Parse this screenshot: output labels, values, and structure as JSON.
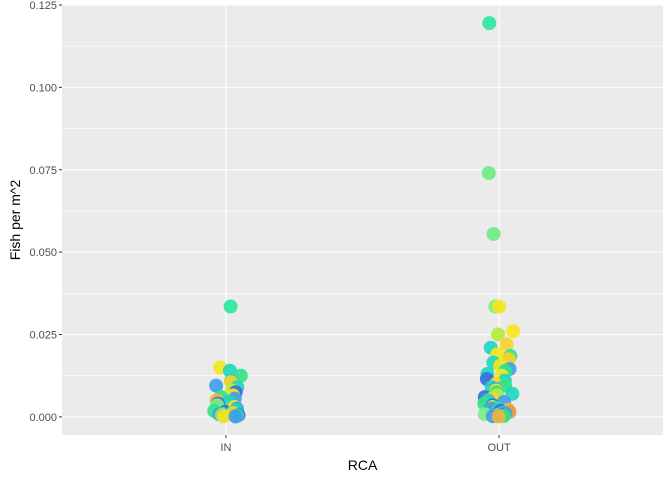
{
  "chart_data": {
    "type": "scatter",
    "title": "",
    "xlabel": "RCA",
    "ylabel": "Fish per m^2",
    "categories": [
      "IN",
      "OUT"
    ],
    "ylim": [
      -0.0055,
      0.125
    ],
    "yticks": [
      0.0,
      0.025,
      0.05,
      0.075,
      0.1,
      0.125
    ],
    "ytick_labels": [
      "0.000",
      "0.025",
      "0.050",
      "0.075",
      "0.100",
      "0.125"
    ],
    "grid": true,
    "legend": "none",
    "colors": {
      "panel": "#EBEBEB",
      "grid": "#FFFFFF",
      "palette": [
        "#3B6FE0",
        "#3FA0EA",
        "#1FD7C0",
        "#33E38A",
        "#7FEE7F",
        "#B5EC3C",
        "#F5E61F",
        "#F8D22C",
        "#EFB43C",
        "#E59A4A"
      ]
    },
    "points": [
      {
        "x": "IN",
        "y": 0.0335,
        "color": "#2EE6A0"
      },
      {
        "x": "IN",
        "y": 0.015,
        "color": "#F5E61F"
      },
      {
        "x": "IN",
        "y": 0.014,
        "color": "#1FD7C0"
      },
      {
        "x": "IN",
        "y": 0.0125,
        "color": "#33E38A"
      },
      {
        "x": "IN",
        "y": 0.011,
        "color": "#2ECFB0"
      },
      {
        "x": "IN",
        "y": 0.0105,
        "color": "#F8D22C"
      },
      {
        "x": "IN",
        "y": 0.0095,
        "color": "#3FA0EA"
      },
      {
        "x": "IN",
        "y": 0.009,
        "color": "#1FD7C0"
      },
      {
        "x": "IN",
        "y": 0.008,
        "color": "#B5EC3C"
      },
      {
        "x": "IN",
        "y": 0.0075,
        "color": "#3B6FE0"
      },
      {
        "x": "IN",
        "y": 0.0065,
        "color": "#F5E61F"
      },
      {
        "x": "IN",
        "y": 0.006,
        "color": "#33E38A"
      },
      {
        "x": "IN",
        "y": 0.0055,
        "color": "#3FA0EA"
      },
      {
        "x": "IN",
        "y": 0.005,
        "color": "#EFB43C"
      },
      {
        "x": "IN",
        "y": 0.0045,
        "color": "#1FD7C0"
      },
      {
        "x": "IN",
        "y": 0.004,
        "color": "#3B6FE0"
      },
      {
        "x": "IN",
        "y": 0.0035,
        "color": "#7FEE7F"
      },
      {
        "x": "IN",
        "y": 0.003,
        "color": "#F5E61F"
      },
      {
        "x": "IN",
        "y": 0.0025,
        "color": "#3FA0EA"
      },
      {
        "x": "IN",
        "y": 0.002,
        "color": "#1FD7C0"
      },
      {
        "x": "IN",
        "y": 0.0018,
        "color": "#33E38A"
      },
      {
        "x": "IN",
        "y": 0.0015,
        "color": "#3B6FE0"
      },
      {
        "x": "IN",
        "y": 0.0012,
        "color": "#F8D22C"
      },
      {
        "x": "IN",
        "y": 0.001,
        "color": "#1FD7C0"
      },
      {
        "x": "IN",
        "y": 0.0008,
        "color": "#3FA0EA"
      },
      {
        "x": "IN",
        "y": 0.0006,
        "color": "#B5EC3C"
      },
      {
        "x": "IN",
        "y": 0.0005,
        "color": "#3B6FE0"
      },
      {
        "x": "IN",
        "y": 0.0004,
        "color": "#33E38A"
      },
      {
        "x": "IN",
        "y": 0.0003,
        "color": "#1FD7C0"
      },
      {
        "x": "IN",
        "y": 0.0002,
        "color": "#F5E61F"
      },
      {
        "x": "IN",
        "y": 0.0001,
        "color": "#3FA0EA"
      },
      {
        "x": "OUT",
        "y": 0.1195,
        "color": "#2EE6A0"
      },
      {
        "x": "OUT",
        "y": 0.074,
        "color": "#6EEC86"
      },
      {
        "x": "OUT",
        "y": 0.0555,
        "color": "#6EEC86"
      },
      {
        "x": "OUT",
        "y": 0.0335,
        "color": "#7FEE7F"
      },
      {
        "x": "OUT",
        "y": 0.0335,
        "color": "#F5E61F"
      },
      {
        "x": "OUT",
        "y": 0.026,
        "color": "#F5E61F"
      },
      {
        "x": "OUT",
        "y": 0.025,
        "color": "#B5EC3C"
      },
      {
        "x": "OUT",
        "y": 0.022,
        "color": "#F8D22C"
      },
      {
        "x": "OUT",
        "y": 0.021,
        "color": "#1FD7C0"
      },
      {
        "x": "OUT",
        "y": 0.019,
        "color": "#F5E61F"
      },
      {
        "x": "OUT",
        "y": 0.0185,
        "color": "#33E38A"
      },
      {
        "x": "OUT",
        "y": 0.0175,
        "color": "#F8D22C"
      },
      {
        "x": "OUT",
        "y": 0.0165,
        "color": "#1FD7C0"
      },
      {
        "x": "OUT",
        "y": 0.0155,
        "color": "#F5E61F"
      },
      {
        "x": "OUT",
        "y": 0.0145,
        "color": "#3FA0EA"
      },
      {
        "x": "OUT",
        "y": 0.014,
        "color": "#33E38A"
      },
      {
        "x": "OUT",
        "y": 0.013,
        "color": "#1FD7C0"
      },
      {
        "x": "OUT",
        "y": 0.0125,
        "color": "#F5E61F"
      },
      {
        "x": "OUT",
        "y": 0.0115,
        "color": "#3B6FE0"
      },
      {
        "x": "OUT",
        "y": 0.011,
        "color": "#1FD7C0"
      },
      {
        "x": "OUT",
        "y": 0.01,
        "color": "#F8D22C"
      },
      {
        "x": "OUT",
        "y": 0.0095,
        "color": "#33E38A"
      },
      {
        "x": "OUT",
        "y": 0.009,
        "color": "#1FD7C0"
      },
      {
        "x": "OUT",
        "y": 0.0085,
        "color": "#3FA0EA"
      },
      {
        "x": "OUT",
        "y": 0.008,
        "color": "#F5E61F"
      },
      {
        "x": "OUT",
        "y": 0.0075,
        "color": "#33E38A"
      },
      {
        "x": "OUT",
        "y": 0.007,
        "color": "#1FD7C0"
      },
      {
        "x": "OUT",
        "y": 0.0065,
        "color": "#B5EC3C"
      },
      {
        "x": "OUT",
        "y": 0.006,
        "color": "#3B6FE0"
      },
      {
        "x": "OUT",
        "y": 0.0055,
        "color": "#F8D22C"
      },
      {
        "x": "OUT",
        "y": 0.005,
        "color": "#1FD7C0"
      },
      {
        "x": "OUT",
        "y": 0.0045,
        "color": "#3FA0EA"
      },
      {
        "x": "OUT",
        "y": 0.004,
        "color": "#33E38A"
      },
      {
        "x": "OUT",
        "y": 0.0035,
        "color": "#3B6FE0"
      },
      {
        "x": "OUT",
        "y": 0.003,
        "color": "#F5E61F"
      },
      {
        "x": "OUT",
        "y": 0.0028,
        "color": "#1FD7C0"
      },
      {
        "x": "OUT",
        "y": 0.0025,
        "color": "#3FA0EA"
      },
      {
        "x": "OUT",
        "y": 0.0022,
        "color": "#EFB43C"
      },
      {
        "x": "OUT",
        "y": 0.002,
        "color": "#33E38A"
      },
      {
        "x": "OUT",
        "y": 0.0018,
        "color": "#3B6FE0"
      },
      {
        "x": "OUT",
        "y": 0.0015,
        "color": "#E59A4A"
      },
      {
        "x": "OUT",
        "y": 0.0012,
        "color": "#1FD7C0"
      },
      {
        "x": "OUT",
        "y": 0.001,
        "color": "#3FA0EA"
      },
      {
        "x": "OUT",
        "y": 0.0008,
        "color": "#7FEE7F"
      },
      {
        "x": "OUT",
        "y": 0.0006,
        "color": "#3B6FE0"
      },
      {
        "x": "OUT",
        "y": 0.0005,
        "color": "#F8D22C"
      },
      {
        "x": "OUT",
        "y": 0.0004,
        "color": "#1FD7C0"
      },
      {
        "x": "OUT",
        "y": 0.0003,
        "color": "#33E38A"
      },
      {
        "x": "OUT",
        "y": 0.0002,
        "color": "#3FA0EA"
      },
      {
        "x": "OUT",
        "y": 0.0001,
        "color": "#EFB43C"
      }
    ]
  }
}
